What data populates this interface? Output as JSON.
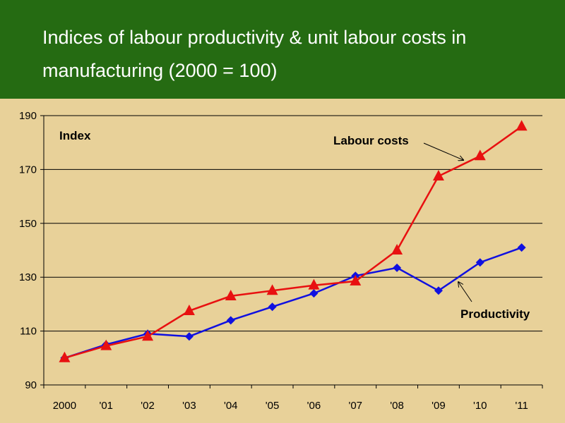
{
  "title_lines": [
    "Indices of labour productivity & unit labour costs in",
    "manufacturing (2000 = 100)"
  ],
  "chart_data": {
    "type": "line",
    "title": "Indices of labour productivity & unit labour costs in manufacturing (2000 = 100)",
    "categories": [
      "2000",
      "'01",
      "'02",
      "'03",
      "'04",
      "'05",
      "'06",
      "'07",
      "'08",
      "'09",
      "'10",
      "'11"
    ],
    "ylabel": "Index",
    "ylim": [
      90,
      190
    ],
    "yticks": [
      90,
      110,
      130,
      150,
      170,
      190
    ],
    "grid": true,
    "series": [
      {
        "name": "Labour costs",
        "color": "#e81010",
        "marker": "triangle",
        "values": [
          100,
          104.5,
          108,
          117.5,
          123,
          125,
          127,
          128.5,
          140,
          167.5,
          175,
          186
        ]
      },
      {
        "name": "Productivity",
        "color": "#1010e0",
        "marker": "diamond",
        "values": [
          100,
          105,
          109,
          108,
          114,
          119,
          124,
          130.5,
          133.5,
          125,
          135.5,
          141
        ]
      }
    ]
  }
}
